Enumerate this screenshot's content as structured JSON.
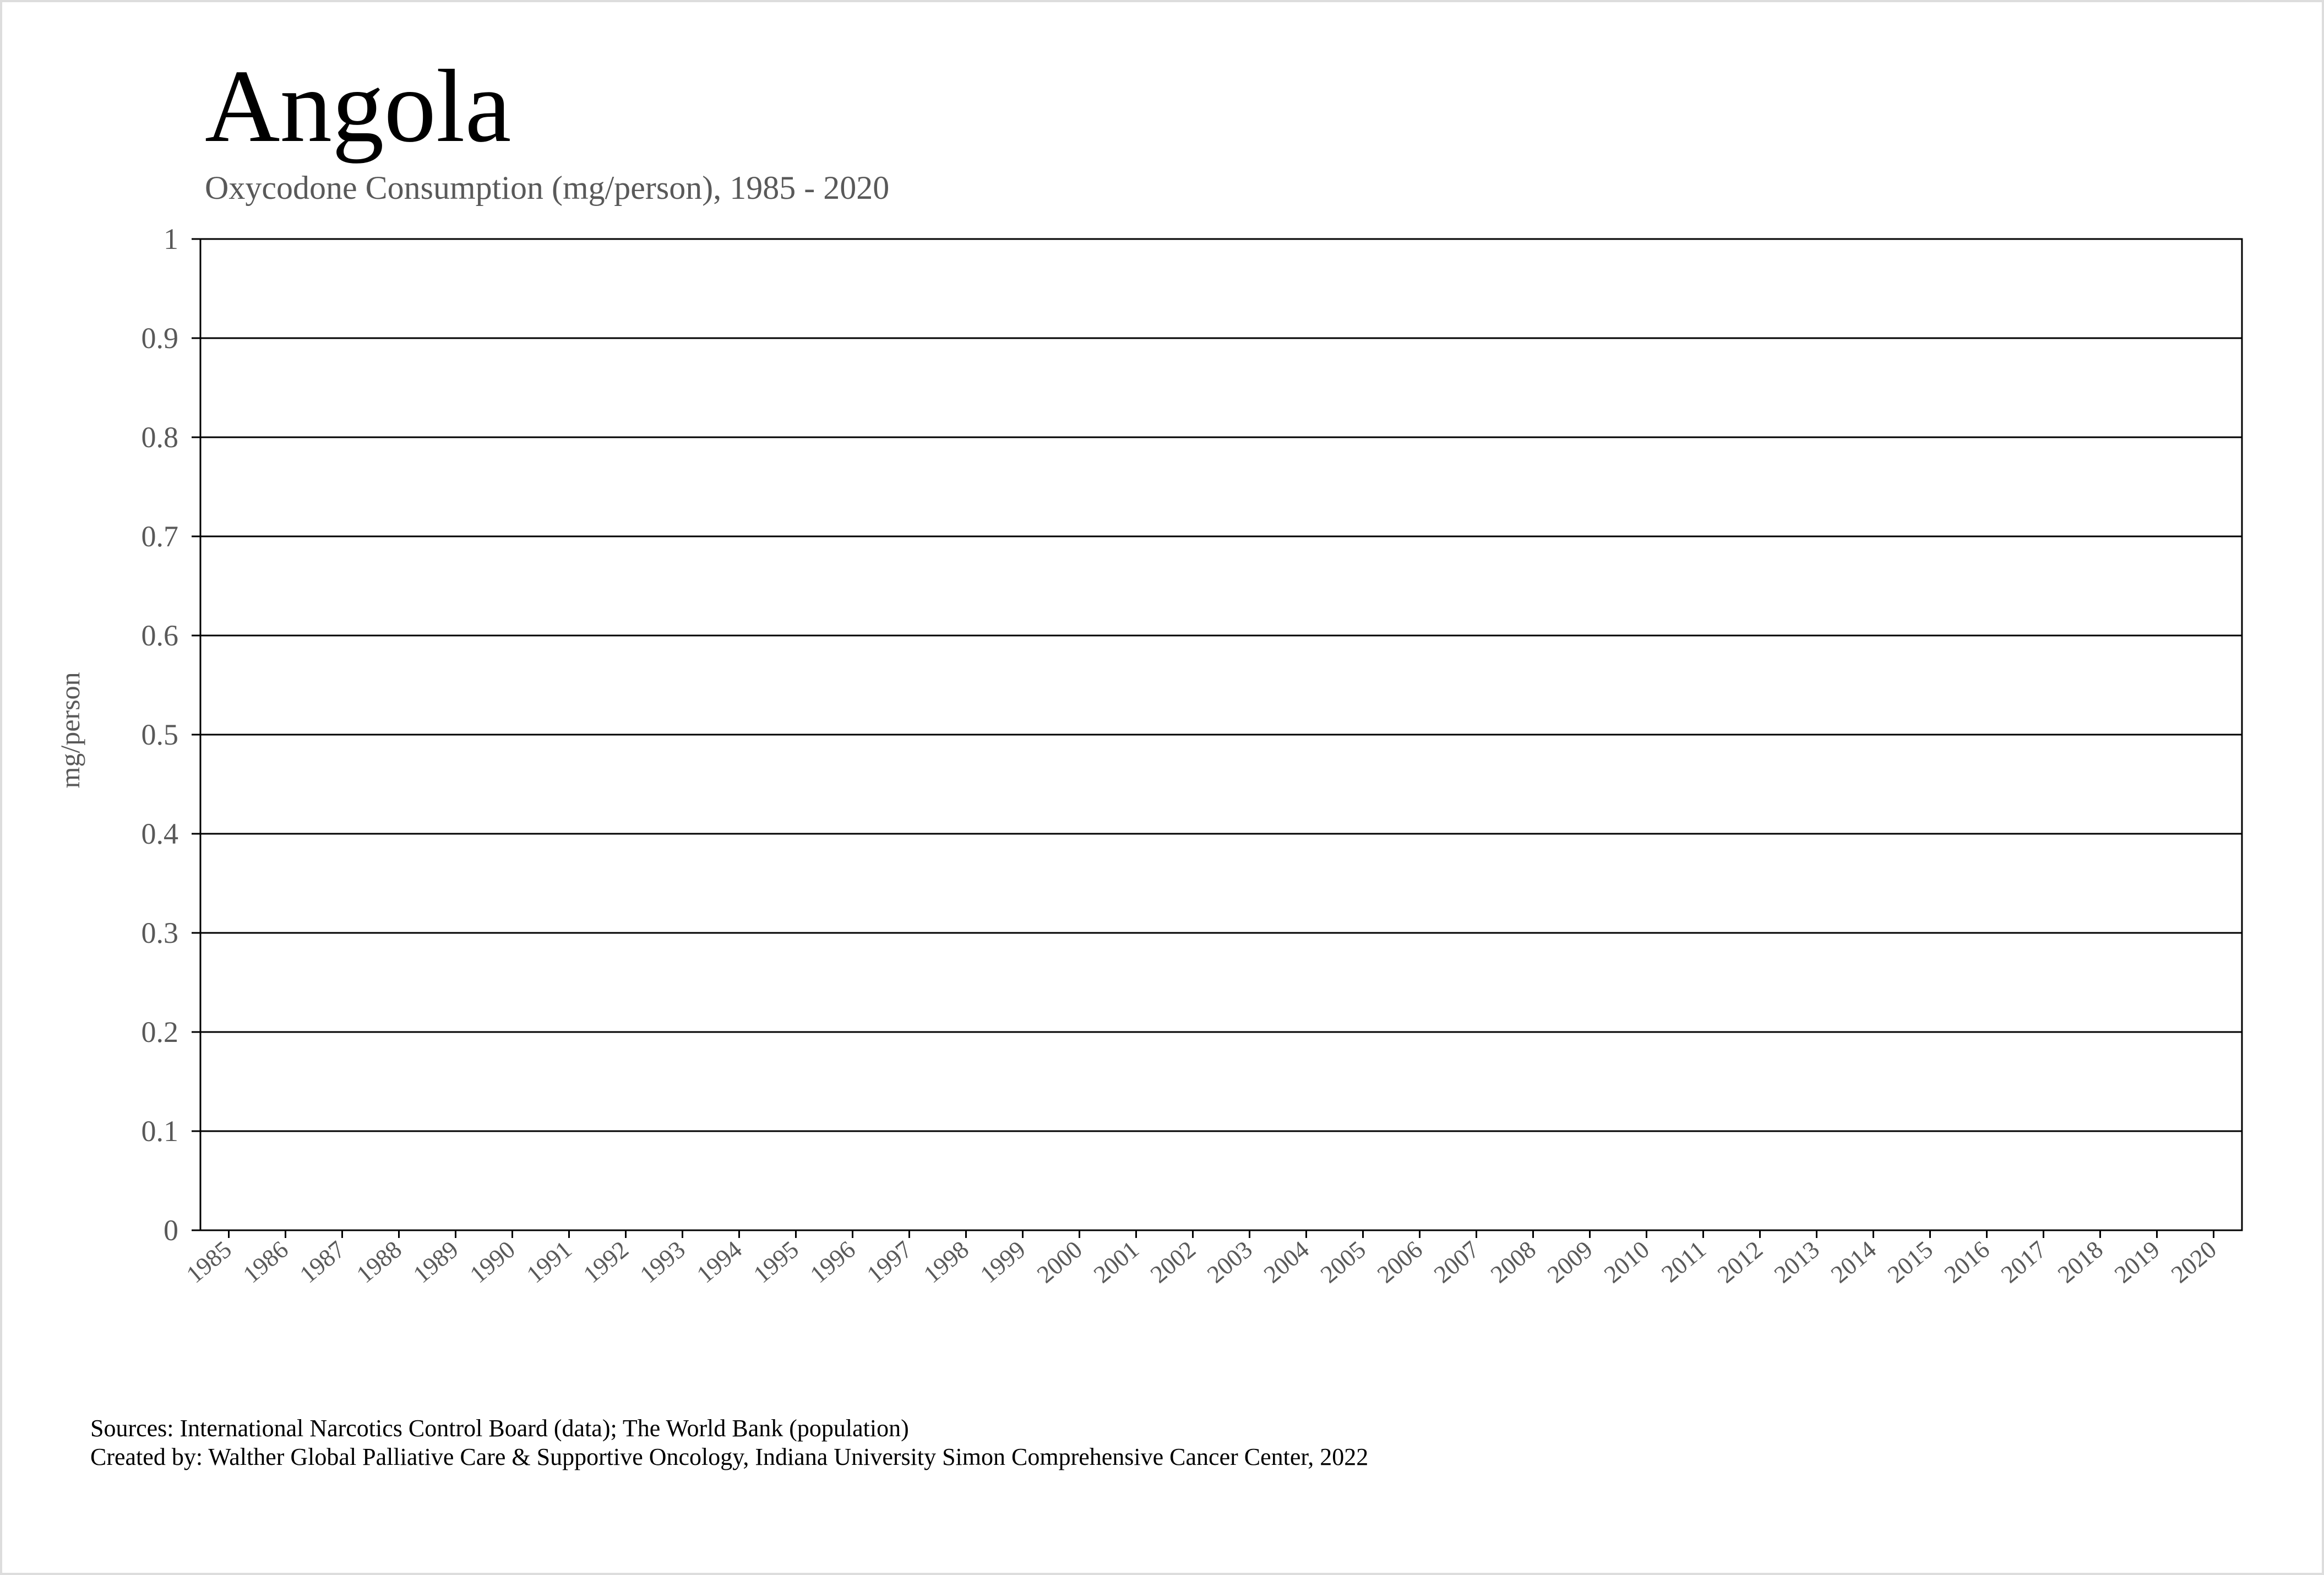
{
  "chart_data": {
    "type": "line",
    "title": "Angola",
    "subtitle": "Oxycodone Consumption (mg/person), 1985 - 2020",
    "y_label": "mg/person",
    "categories": [
      "1985",
      "1986",
      "1987",
      "1988",
      "1989",
      "1990",
      "1991",
      "1992",
      "1993",
      "1994",
      "1995",
      "1996",
      "1997",
      "1998",
      "1999",
      "2000",
      "2001",
      "2002",
      "2003",
      "2004",
      "2005",
      "2006",
      "2007",
      "2008",
      "2009",
      "2010",
      "2011",
      "2012",
      "2013",
      "2014",
      "2015",
      "2016",
      "2017",
      "2018",
      "2019",
      "2020"
    ],
    "values": [
      null,
      null,
      null,
      null,
      null,
      null,
      null,
      null,
      null,
      null,
      null,
      null,
      null,
      null,
      null,
      null,
      null,
      null,
      null,
      null,
      null,
      null,
      null,
      null,
      null,
      null,
      null,
      null,
      null,
      null,
      null,
      null,
      null,
      null,
      null,
      null
    ],
    "color": "#1f4e79",
    "ylim": [
      0,
      1
    ],
    "yticks": [
      0,
      0.1,
      0.2,
      0.3,
      0.4,
      0.5,
      0.6,
      0.7,
      0.8,
      0.9,
      1
    ],
    "grid": true,
    "notes": [
      "Sources: International Narcotics Control Board (data); The World Bank (population)",
      "Created by: Walther Global Palliative Care & Supportive Oncology, Indiana University Simon Comprehensive Cancer Center, 2022"
    ]
  }
}
